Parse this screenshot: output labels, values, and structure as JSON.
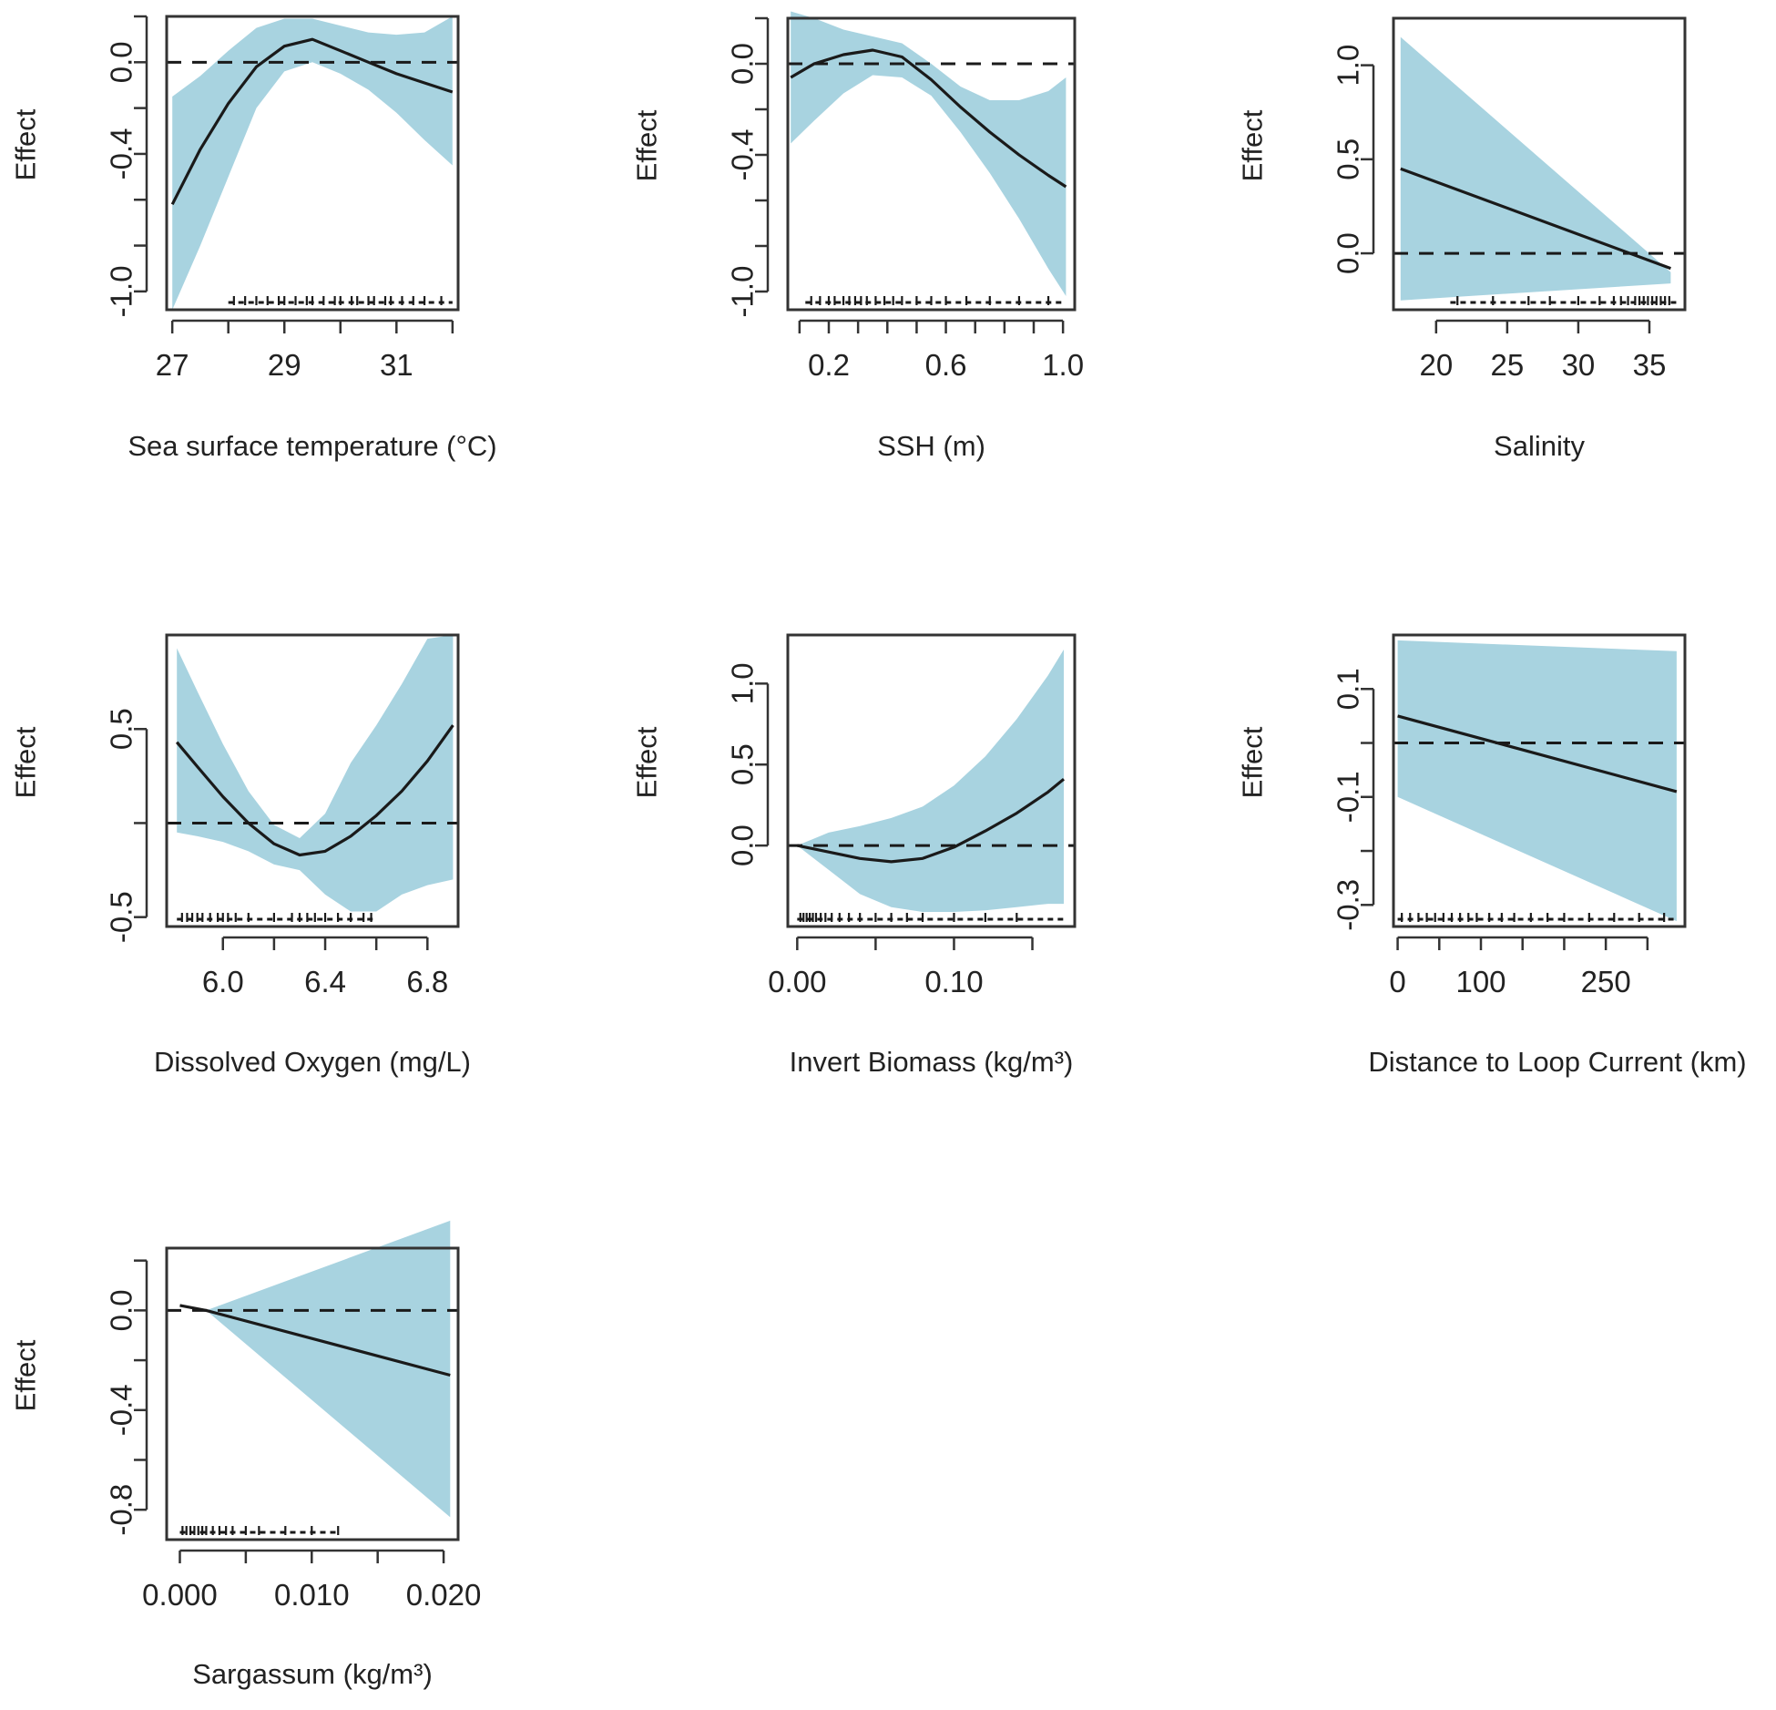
{
  "colors": {
    "band": "#a8d3e0",
    "line": "#1a1a1a",
    "frame": "#333333",
    "zero_line": "#1a1a1a",
    "rug": "#1a1a1a"
  },
  "chart_data": [
    {
      "id": "sst",
      "type": "line",
      "title": "",
      "xlabel": "Sea surface temperature (°C)",
      "ylabel": "Effect",
      "xlim": [
        26.9,
        32.1
      ],
      "ylim": [
        -1.08,
        0.2
      ],
      "xticks": [
        27,
        28,
        29,
        30,
        31,
        32
      ],
      "xtick_labels": [
        "27",
        "29",
        "31"
      ],
      "xtick_label_values": [
        27,
        29,
        31
      ],
      "yticks": [
        -1.0,
        -0.8,
        -0.6,
        -0.4,
        -0.2,
        0.0,
        0.2
      ],
      "ytick_labels": [
        "-1.0",
        "-0.4",
        "0.0"
      ],
      "ytick_label_values": [
        -1.0,
        -0.4,
        0.0
      ],
      "x": [
        27.0,
        27.5,
        28.0,
        28.5,
        29.0,
        29.5,
        30.0,
        30.5,
        31.0,
        31.5,
        32.0
      ],
      "fit": [
        -0.62,
        -0.38,
        -0.18,
        -0.02,
        0.07,
        0.1,
        0.05,
        0.0,
        -0.05,
        -0.09,
        -0.13
      ],
      "lower": [
        -1.08,
        -0.8,
        -0.5,
        -0.2,
        -0.04,
        0.0,
        -0.05,
        -0.12,
        -0.22,
        -0.34,
        -0.45
      ],
      "upper": [
        -0.15,
        -0.06,
        0.05,
        0.15,
        0.19,
        0.19,
        0.16,
        0.13,
        0.12,
        0.13,
        0.2
      ],
      "rug_range": [
        28.0,
        32.0
      ],
      "rug": [
        28.1,
        28.3,
        28.5,
        28.7,
        28.9,
        29.0,
        29.2,
        29.4,
        29.5,
        29.7,
        29.9,
        30.0,
        30.2,
        30.3,
        30.5,
        30.6,
        30.8,
        30.9,
        31.1,
        31.3,
        31.5,
        31.8
      ]
    },
    {
      "id": "ssh",
      "type": "line",
      "title": "",
      "xlabel": "SSH (m)",
      "ylabel": "Effect",
      "xlim": [
        0.06,
        1.04
      ],
      "ylim": [
        -1.08,
        0.2
      ],
      "xticks": [
        0.1,
        0.2,
        0.3,
        0.4,
        0.5,
        0.6,
        0.7,
        0.8,
        0.9,
        1.0
      ],
      "xtick_labels": [
        "0.2",
        "0.6",
        "1.0"
      ],
      "xtick_label_values": [
        0.2,
        0.6,
        1.0
      ],
      "yticks": [
        -1.0,
        -0.8,
        -0.6,
        -0.4,
        -0.2,
        0.0,
        0.2
      ],
      "ytick_labels": [
        "-1.0",
        "-0.4",
        "0.0"
      ],
      "ytick_label_values": [
        -1.0,
        -0.4,
        0.0
      ],
      "x": [
        0.07,
        0.15,
        0.25,
        0.35,
        0.45,
        0.55,
        0.65,
        0.75,
        0.85,
        0.95,
        1.01
      ],
      "fit": [
        -0.06,
        0.0,
        0.04,
        0.06,
        0.03,
        -0.07,
        -0.19,
        -0.3,
        -0.4,
        -0.49,
        -0.54
      ],
      "lower": [
        -0.35,
        -0.25,
        -0.13,
        -0.05,
        -0.06,
        -0.14,
        -0.3,
        -0.48,
        -0.68,
        -0.9,
        -1.02
      ],
      "upper": [
        0.23,
        0.2,
        0.15,
        0.12,
        0.09,
        0.0,
        -0.1,
        -0.16,
        -0.16,
        -0.12,
        -0.06
      ],
      "rug_range": [
        0.12,
        1.0
      ],
      "rug": [
        0.14,
        0.17,
        0.2,
        0.22,
        0.25,
        0.27,
        0.29,
        0.31,
        0.33,
        0.36,
        0.39,
        0.42,
        0.45,
        0.5,
        0.55,
        0.6,
        0.67,
        0.75,
        0.85,
        0.95
      ]
    },
    {
      "id": "sal",
      "type": "line",
      "title": "",
      "xlabel": "Salinity",
      "ylabel": "Effect",
      "xlim": [
        17.0,
        37.5
      ],
      "ylim": [
        -0.3,
        1.25
      ],
      "xticks": [
        20,
        25,
        30,
        35
      ],
      "xtick_labels": [
        "20",
        "25",
        "30",
        "35"
      ],
      "xtick_label_values": [
        20,
        25,
        30,
        35
      ],
      "yticks": [
        0.0,
        0.5,
        1.0
      ],
      "ytick_labels": [
        "0.0",
        "0.5",
        "1.0"
      ],
      "ytick_label_values": [
        0.0,
        0.5,
        1.0
      ],
      "x": [
        17.5,
        36.5
      ],
      "fit": [
        0.45,
        -0.08
      ],
      "lower": [
        -0.25,
        -0.16
      ],
      "upper": [
        1.15,
        -0.1
      ],
      "rug_range": [
        21.0,
        37.0
      ],
      "rug": [
        21.5,
        24.0,
        26.5,
        28.0,
        30.0,
        31.5,
        32.5,
        33.0,
        33.5,
        34.0,
        34.3,
        34.6,
        34.9,
        35.2,
        35.5,
        35.8,
        36.1,
        36.4
      ]
    },
    {
      "id": "do",
      "type": "line",
      "title": "",
      "xlabel": "Dissolved Oxygen (mg/L)",
      "ylabel": "Effect",
      "xlim": [
        5.78,
        6.92
      ],
      "ylim": [
        -0.55,
        1.0
      ],
      "xticks": [
        6.0,
        6.2,
        6.4,
        6.6,
        6.8
      ],
      "xtick_labels": [
        "6.0",
        "6.4",
        "6.8"
      ],
      "xtick_label_values": [
        6.0,
        6.4,
        6.8
      ],
      "yticks": [
        -0.5,
        0.0,
        0.5
      ],
      "ytick_labels": [
        "-0.5",
        "0.5"
      ],
      "ytick_label_values": [
        -0.5,
        0.5
      ],
      "x": [
        5.82,
        5.9,
        6.0,
        6.1,
        6.2,
        6.3,
        6.4,
        6.5,
        6.6,
        6.7,
        6.8,
        6.9
      ],
      "fit": [
        0.43,
        0.3,
        0.14,
        0.0,
        -0.11,
        -0.17,
        -0.15,
        -0.07,
        0.04,
        0.17,
        0.33,
        0.52
      ],
      "lower": [
        -0.05,
        -0.07,
        -0.1,
        -0.15,
        -0.22,
        -0.25,
        -0.38,
        -0.47,
        -0.47,
        -0.38,
        -0.33,
        -0.3
      ],
      "upper": [
        0.93,
        0.7,
        0.42,
        0.17,
        -0.01,
        -0.08,
        0.05,
        0.32,
        0.52,
        0.74,
        0.98,
        1.0
      ],
      "rug_range": [
        5.82,
        6.6
      ],
      "rug": [
        5.84,
        5.86,
        5.88,
        5.9,
        5.92,
        5.95,
        5.98,
        6.0,
        6.02,
        6.05,
        6.1,
        6.2,
        6.27,
        6.3,
        6.33,
        6.36,
        6.4,
        6.45,
        6.5,
        6.55,
        6.58
      ]
    },
    {
      "id": "inv",
      "type": "line",
      "title": "",
      "xlabel": "Invert Biomass (kg/m³)",
      "ylabel": "Effect",
      "xlim": [
        -0.006,
        0.177
      ],
      "ylim": [
        -0.5,
        1.3
      ],
      "xticks": [
        0.0,
        0.05,
        0.1,
        0.15
      ],
      "xtick_labels": [
        "0.00",
        "0.10"
      ],
      "xtick_label_values": [
        0.0,
        0.1
      ],
      "yticks": [
        0.0,
        0.5,
        1.0
      ],
      "ytick_labels": [
        "0.0",
        "0.5",
        "1.0"
      ],
      "ytick_label_values": [
        0.0,
        0.5,
        1.0
      ],
      "x": [
        0.0,
        0.02,
        0.04,
        0.06,
        0.08,
        0.1,
        0.12,
        0.14,
        0.16,
        0.17
      ],
      "fit": [
        0.0,
        -0.04,
        -0.08,
        -0.1,
        -0.08,
        -0.01,
        0.09,
        0.2,
        0.33,
        0.41
      ],
      "lower": [
        0.0,
        -0.15,
        -0.3,
        -0.38,
        -0.41,
        -0.41,
        -0.4,
        -0.38,
        -0.36,
        -0.36
      ],
      "upper": [
        0.0,
        0.08,
        0.12,
        0.17,
        0.24,
        0.37,
        0.55,
        0.78,
        1.05,
        1.21
      ],
      "rug_range": [
        0.0,
        0.17
      ],
      "rug": [
        0.002,
        0.004,
        0.006,
        0.008,
        0.01,
        0.012,
        0.015,
        0.018,
        0.022,
        0.027,
        0.033,
        0.04,
        0.05,
        0.06,
        0.07,
        0.08,
        0.1,
        0.12,
        0.14
      ]
    },
    {
      "id": "loop",
      "type": "line",
      "title": "",
      "xlabel": "Distance to Loop Current (km)",
      "ylabel": "Effect",
      "xlim": [
        -5,
        345
      ],
      "ylim": [
        -0.34,
        0.2
      ],
      "xticks": [
        0,
        50,
        100,
        150,
        200,
        250,
        300
      ],
      "xtick_labels": [
        "0",
        "100",
        "250"
      ],
      "xtick_label_values": [
        0,
        100,
        250
      ],
      "yticks": [
        -0.3,
        -0.2,
        -0.1,
        0.0,
        0.1
      ],
      "ytick_labels": [
        "-0.3",
        "-0.1",
        "0.1"
      ],
      "ytick_label_values": [
        -0.3,
        -0.1,
        0.1
      ],
      "x": [
        0,
        335
      ],
      "fit": [
        0.05,
        -0.09
      ],
      "lower": [
        -0.1,
        -0.33
      ],
      "upper": [
        0.19,
        0.17
      ],
      "rug_range": [
        0,
        335
      ],
      "rug": [
        5,
        15,
        25,
        35,
        45,
        55,
        65,
        75,
        85,
        95,
        110,
        125,
        140,
        160,
        180,
        200,
        230,
        260,
        290,
        320
      ]
    },
    {
      "id": "sarg",
      "type": "line",
      "title": "",
      "xlabel": "Sargassum (kg/m³)",
      "ylabel": "Effect",
      "xlim": [
        -0.001,
        0.0211
      ],
      "ylim": [
        -0.92,
        0.25
      ],
      "xticks": [
        0.0,
        0.005,
        0.01,
        0.015,
        0.02
      ],
      "xtick_labels": [
        "0.000",
        "0.010",
        "0.020"
      ],
      "xtick_label_values": [
        0.0,
        0.01,
        0.02
      ],
      "yticks": [
        -0.8,
        -0.6,
        -0.4,
        -0.2,
        0.0,
        0.2
      ],
      "ytick_labels": [
        "-0.8",
        "-0.4",
        "0.0"
      ],
      "ytick_label_values": [
        -0.8,
        -0.4,
        0.0
      ],
      "x": [
        0.0,
        0.002,
        0.0205
      ],
      "fit": [
        0.02,
        0.0,
        -0.26
      ],
      "lower": [
        0.02,
        0.0,
        -0.83
      ],
      "upper": [
        0.02,
        0.0,
        0.36
      ],
      "rug_range": [
        0.0,
        0.012
      ],
      "rug": [
        0.0002,
        0.0005,
        0.0008,
        0.0011,
        0.0014,
        0.0017,
        0.002,
        0.0025,
        0.003,
        0.0035,
        0.004,
        0.005,
        0.006,
        0.008,
        0.01,
        0.012
      ]
    }
  ]
}
